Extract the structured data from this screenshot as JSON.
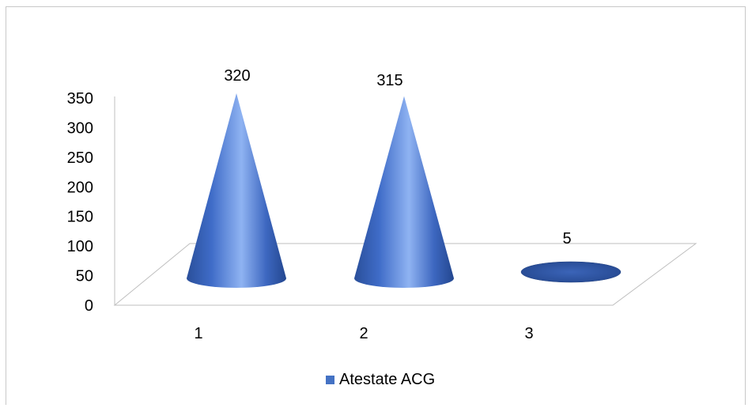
{
  "chart_data": {
    "type": "bar",
    "subtype": "3d-cone",
    "categories": [
      "1",
      "2",
      "3"
    ],
    "series": [
      {
        "name": "Atestate ACG",
        "values": [
          320,
          315,
          5
        ],
        "color": "#4472C4"
      }
    ],
    "ylim": [
      0,
      350
    ],
    "y_ticks": [
      "0",
      "50",
      "100",
      "150",
      "200",
      "250",
      "300",
      "350"
    ],
    "data_labels": [
      "320",
      "315",
      "5"
    ],
    "legend_position": "bottom",
    "grid": false
  }
}
